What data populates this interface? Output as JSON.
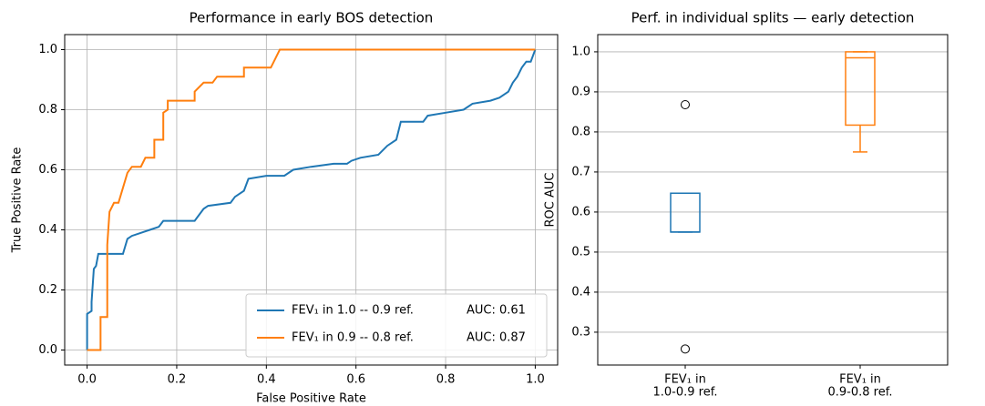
{
  "chart_data": [
    {
      "type": "line",
      "title": "Performance in early BOS detection",
      "xlabel": "False Positive Rate",
      "ylabel": "True Positive Rate",
      "xlim": [
        -0.05,
        1.05
      ],
      "ylim": [
        -0.05,
        1.05
      ],
      "xticks": [
        {
          "value": 0,
          "label": "0.0"
        },
        0.2,
        0.4,
        0.6,
        0.8,
        {
          "value": 1,
          "label": "1.0"
        }
      ],
      "yticks": [
        {
          "value": 0,
          "label": "0.0"
        },
        0.2,
        0.4,
        0.6,
        0.8,
        {
          "value": 1,
          "label": "1.0"
        }
      ],
      "grid": true,
      "legend": "lower right",
      "series": [
        {
          "name": "FEV₁ in 1.0 -- 0.9 ref.",
          "legend_note": "AUC: 0.61",
          "color": "#1f77b4",
          "x": [
            0,
            0,
            0.01,
            0.01,
            0.015,
            0.02,
            0.025,
            0.08,
            0.09,
            0.1,
            0.12,
            0.14,
            0.16,
            0.17,
            0.24,
            0.26,
            0.27,
            0.32,
            0.33,
            0.35,
            0.36,
            0.4,
            0.44,
            0.46,
            0.5,
            0.55,
            0.58,
            0.59,
            0.61,
            0.65,
            0.67,
            0.69,
            0.7,
            0.75,
            0.76,
            0.8,
            0.84,
            0.86,
            0.9,
            0.92,
            0.94,
            0.95,
            0.96,
            0.97,
            0.98,
            0.99,
            1
          ],
          "values": [
            0,
            0.12,
            0.13,
            0.16,
            0.27,
            0.28,
            0.32,
            0.32,
            0.37,
            0.38,
            0.39,
            0.4,
            0.41,
            0.43,
            0.43,
            0.47,
            0.48,
            0.49,
            0.51,
            0.53,
            0.57,
            0.58,
            0.58,
            0.6,
            0.61,
            0.62,
            0.62,
            0.63,
            0.64,
            0.65,
            0.68,
            0.7,
            0.76,
            0.76,
            0.78,
            0.79,
            0.8,
            0.82,
            0.83,
            0.84,
            0.86,
            0.89,
            0.91,
            0.94,
            0.96,
            0.96,
            1
          ]
        },
        {
          "name": "FEV₁ in 0.9 -- 0.8 ref.",
          "legend_note": "AUC: 0.87",
          "color": "#ff7f0e",
          "x": [
            0,
            0.03,
            0.03,
            0.045,
            0.045,
            0.05,
            0.06,
            0.07,
            0.08,
            0.09,
            0.1,
            0.12,
            0.13,
            0.15,
            0.15,
            0.17,
            0.17,
            0.18,
            0.18,
            0.24,
            0.24,
            0.26,
            0.28,
            0.29,
            0.35,
            0.35,
            0.41,
            0.42,
            0.43,
            1
          ],
          "values": [
            0,
            0,
            0.11,
            0.11,
            0.35,
            0.46,
            0.49,
            0.49,
            0.54,
            0.59,
            0.61,
            0.61,
            0.64,
            0.64,
            0.7,
            0.7,
            0.79,
            0.8,
            0.83,
            0.83,
            0.86,
            0.89,
            0.89,
            0.91,
            0.91,
            0.94,
            0.94,
            0.97,
            1,
            1
          ]
        }
      ]
    },
    {
      "type": "box",
      "title": "Perf. in individual splits — early detection",
      "ylabel": "ROC AUC",
      "categories": [
        [
          "FEV₁ in",
          "1.0-0.9 ref."
        ],
        [
          "FEV₁ in",
          "0.9-0.8 ref."
        ]
      ],
      "ylim": [
        0.218,
        1.043
      ],
      "yticks": [
        0.3,
        0.4,
        0.5,
        0.6,
        0.7,
        0.8,
        0.9,
        {
          "value": 1,
          "label": "1.0"
        }
      ],
      "grid": true,
      "boxes": [
        {
          "color": "#1f77b4",
          "whislo": 0.55,
          "q1": 0.55,
          "med": 0.55,
          "q3": 0.647,
          "whishi": 0.647,
          "fliers": [
            0.868,
            0.258
          ]
        },
        {
          "color": "#ff7f0e",
          "whislo": 0.75,
          "q1": 0.817,
          "med": 0.985,
          "q3": 1.0,
          "whishi": 1.0,
          "fliers": []
        }
      ]
    }
  ]
}
